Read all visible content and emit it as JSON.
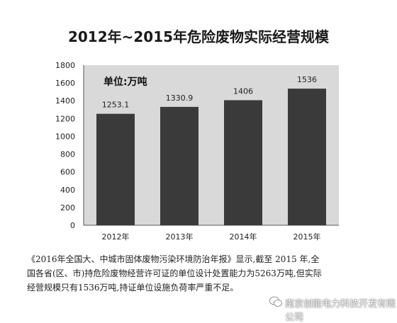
{
  "chart_data": {
    "type": "bar",
    "title": "2012年~2015年危险废物实际经营规模",
    "unit_label": "单位:万吨",
    "categories": [
      "2012年",
      "2013年",
      "2014年",
      "2015年"
    ],
    "values": [
      1253.1,
      1330.9,
      1406,
      1536
    ],
    "value_labels": [
      "1253.1",
      "1330.9",
      "1406",
      "1536"
    ],
    "ylim": [
      0,
      1800
    ],
    "yticks": [
      0,
      200,
      400,
      600,
      800,
      1000,
      1200,
      1400,
      1600,
      1800
    ],
    "bar_color": "#3a3a3a",
    "plot_background": "#d9d9d9",
    "grid": false
  },
  "caption": {
    "line1": "《2016年全国大、中城市固体废物污染环境防治年报》显示,截至 2015 年,全",
    "line2": "国各省(区、市)持危险废物经营许可证的单位设计处置能力为5263万吨,但实际",
    "line3": "经营规模只有1536万吨,持证单位设施负荷率严重不足。"
  },
  "watermark": {
    "text": "南京创能电力科技开发有限公司",
    "icon": "wechat-icon"
  }
}
